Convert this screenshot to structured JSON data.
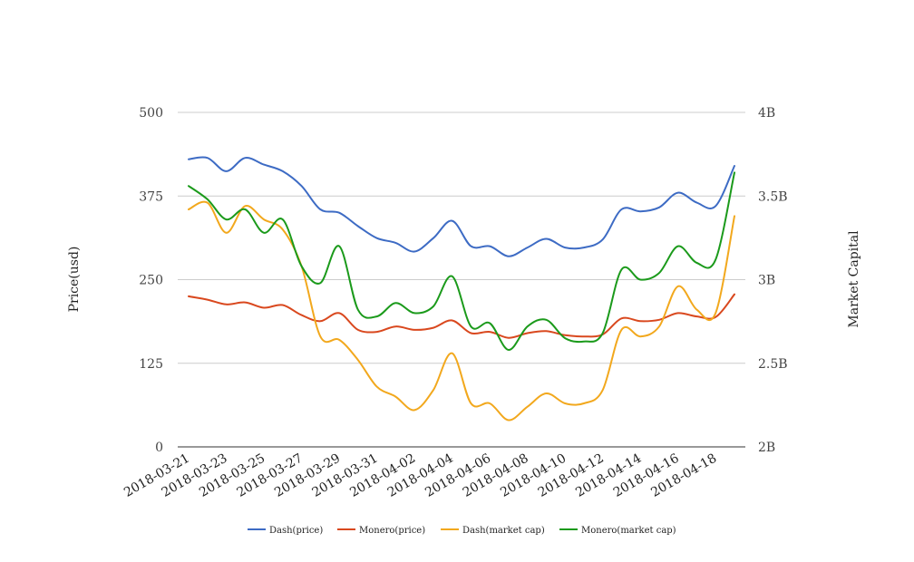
{
  "chart_data": {
    "type": "line",
    "x": [
      "2018-03-21",
      "2018-03-22",
      "2018-03-23",
      "2018-03-24",
      "2018-03-25",
      "2018-03-26",
      "2018-03-27",
      "2018-03-28",
      "2018-03-29",
      "2018-03-30",
      "2018-03-31",
      "2018-04-01",
      "2018-04-02",
      "2018-04-03",
      "2018-04-04",
      "2018-04-05",
      "2018-04-06",
      "2018-04-07",
      "2018-04-08",
      "2018-04-09",
      "2018-04-10",
      "2018-04-11",
      "2018-04-12",
      "2018-04-13",
      "2018-04-14",
      "2018-04-15",
      "2018-04-16",
      "2018-04-17",
      "2018-04-18",
      "2018-04-19"
    ],
    "x_tick_labels": [
      "2018-03-21",
      "2018-03-23",
      "2018-03-25",
      "2018-03-27",
      "2018-03-29",
      "2018-03-31",
      "2018-04-02",
      "2018-04-04",
      "2018-04-06",
      "2018-04-08",
      "2018-04-10",
      "2018-04-12",
      "2018-04-14",
      "2018-04-16",
      "2018-04-18"
    ],
    "left_axis": {
      "label": "Price(usd)",
      "range": [
        0,
        500
      ],
      "ticks": [
        0,
        125,
        250,
        375,
        500
      ],
      "tick_labels": [
        "0",
        "125",
        "250",
        "375",
        "500"
      ]
    },
    "right_axis": {
      "label": "Market Capital",
      "range": [
        2000000000,
        4000000000
      ],
      "ticks": [
        2000000000,
        2500000000,
        3000000000,
        3500000000,
        4000000000
      ],
      "tick_labels": [
        "2B",
        "2.5B",
        "3B",
        "3.5B",
        "4B"
      ]
    },
    "grid": true,
    "legend_position": "bottom",
    "series": [
      {
        "name": "Dash(price)",
        "axis": "left",
        "color": "#3d6bc4",
        "values": [
          430,
          432,
          412,
          432,
          422,
          412,
          390,
          355,
          350,
          330,
          312,
          305,
          292,
          312,
          338,
          300,
          300,
          285,
          298,
          311,
          298,
          298,
          310,
          355,
          352,
          358,
          380,
          365,
          360,
          420
        ]
      },
      {
        "name": "Monero(price)",
        "axis": "left",
        "color": "#d9481e",
        "values": [
          225,
          220,
          213,
          216,
          208,
          212,
          197,
          188,
          200,
          175,
          172,
          180,
          175,
          178,
          189,
          170,
          172,
          163,
          170,
          173,
          167,
          165,
          168,
          192,
          188,
          190,
          200,
          195,
          194,
          228
        ]
      },
      {
        "name": "Dash(market cap)",
        "axis": "right",
        "color": "#f2a81d",
        "values": [
          3420000000,
          3460000000,
          3280000000,
          3440000000,
          3360000000,
          3300000000,
          3080000000,
          2660000000,
          2640000000,
          2520000000,
          2360000000,
          2300000000,
          2220000000,
          2340000000,
          2560000000,
          2260000000,
          2260000000,
          2160000000,
          2240000000,
          2320000000,
          2260000000,
          2260000000,
          2340000000,
          2700000000,
          2660000000,
          2720000000,
          2960000000,
          2820000000,
          2800000000,
          3380000000
        ]
      },
      {
        "name": "Monero(market cap)",
        "axis": "right",
        "color": "#1b9a1b",
        "values": [
          3560000000,
          3480000000,
          3360000000,
          3420000000,
          3280000000,
          3360000000,
          3080000000,
          2980000000,
          3200000000,
          2820000000,
          2780000000,
          2860000000,
          2800000000,
          2840000000,
          3020000000,
          2720000000,
          2740000000,
          2580000000,
          2720000000,
          2760000000,
          2650000000,
          2630000000,
          2680000000,
          3060000000,
          3000000000,
          3040000000,
          3200000000,
          3100000000,
          3120000000,
          3640000000
        ]
      }
    ]
  }
}
